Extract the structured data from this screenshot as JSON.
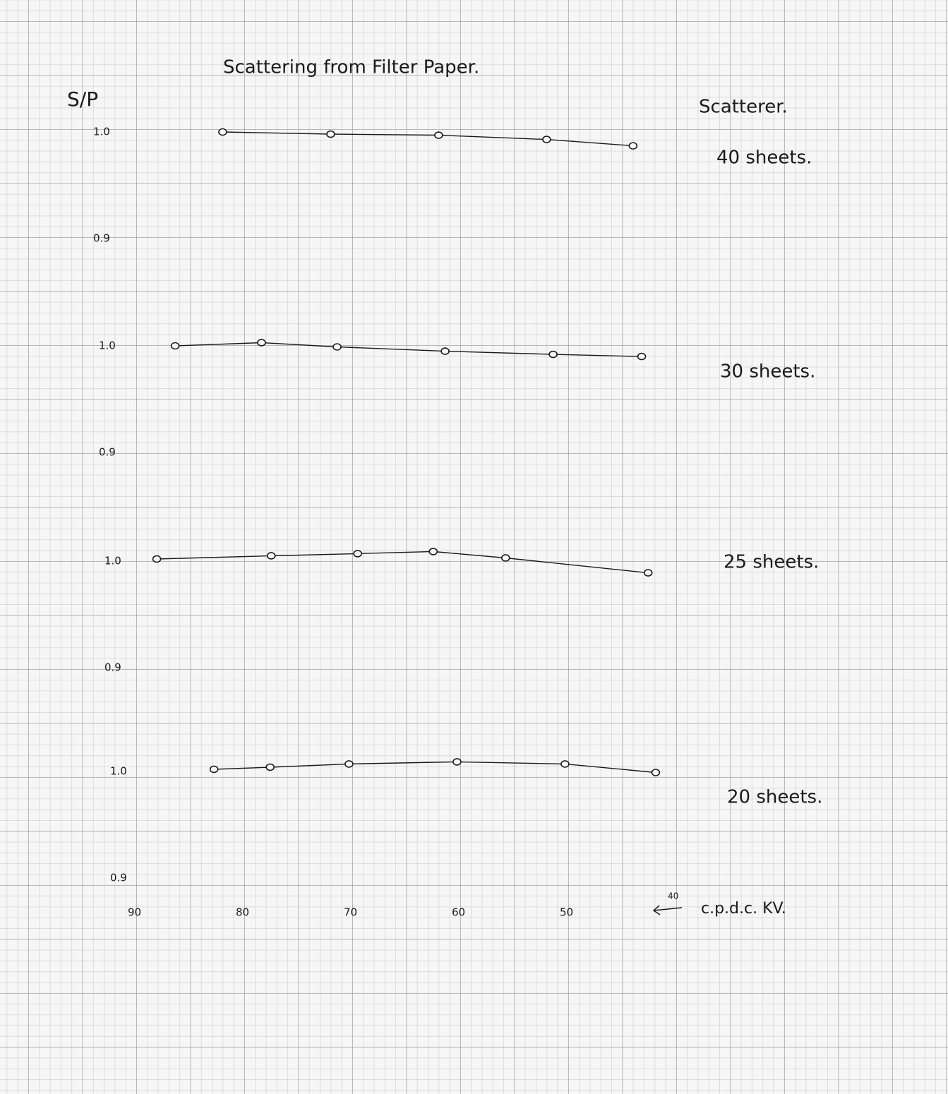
{
  "title": "Scattering from Filter Paper.",
  "ylabel": "S/P",
  "legend_title": "Scatterer.",
  "xlabel": "c.p.d.c. KV.",
  "chart_data": [
    {
      "type": "line",
      "xlim": [
        90,
        40
      ],
      "ylim": [
        0.9,
        1.02
      ],
      "yticks": [
        {
          "value": 1.0,
          "label": "1.0"
        },
        0.9
      ],
      "x": [
        82,
        72,
        62,
        52,
        44
      ],
      "series": [
        {
          "name": "40 sheets.",
          "color": "#1a1a1a",
          "values": [
            1.0,
            0.998,
            0.997,
            0.993,
            0.987
          ]
        }
      ]
    },
    {
      "type": "line",
      "xlim": [
        90,
        40
      ],
      "ylim": [
        0.9,
        1.02
      ],
      "yticks": [
        {
          "value": 1.0,
          "label": "1.0"
        },
        0.9
      ],
      "x": [
        86.4,
        78.4,
        71.4,
        61.4,
        51.4,
        43.2
      ],
      "series": [
        {
          "name": "30 sheets.",
          "color": "#1a1a1a",
          "values": [
            1.0,
            1.003,
            0.999,
            0.995,
            0.992,
            0.99
          ]
        }
      ]
    },
    {
      "type": "line",
      "xlim": [
        90,
        40
      ],
      "ylim": [
        0.9,
        1.02
      ],
      "yticks": [
        {
          "value": 1.0,
          "label": "1.0"
        },
        0.9
      ],
      "x": [
        88.1,
        77.5,
        69.5,
        62.5,
        55.8,
        42.6
      ],
      "series": [
        {
          "name": "25 sheets.",
          "color": "#1a1a1a",
          "values": [
            1.002,
            1.005,
            1.007,
            1.009,
            1.003,
            0.989
          ]
        }
      ]
    },
    {
      "type": "line",
      "xlim": [
        90,
        40
      ],
      "ylim": [
        0.9,
        1.02
      ],
      "yticks": [
        {
          "value": 1.0,
          "label": "1.0"
        },
        0.9
      ],
      "xticks": [
        90,
        80,
        70,
        60,
        50,
        40
      ],
      "x": [
        82.8,
        77.6,
        70.3,
        60.3,
        50.3,
        41.9
      ],
      "series": [
        {
          "name": "20 sheets.",
          "color": "#1a1a1a",
          "values": [
            1.002,
            1.004,
            1.007,
            1.009,
            1.007,
            0.999
          ]
        }
      ]
    }
  ]
}
